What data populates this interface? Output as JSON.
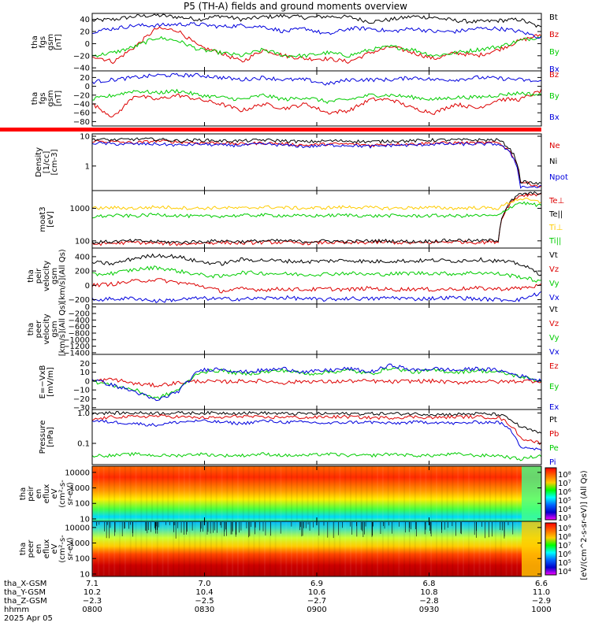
{
  "title": "P5 (TH-A) fields and ground moments overview",
  "date_label": "2025 Apr 05",
  "chart_data": [
    {
      "type": "line",
      "id": "fgs",
      "ylabel": [
        "tha",
        "fgs",
        "gsm",
        "[nT]"
      ],
      "ylim": [
        -45,
        50
      ],
      "yticks": [
        40,
        20,
        0,
        -20,
        -40
      ],
      "ytick_labels": [
        "40",
        "20",
        "0",
        "−20",
        "−40"
      ],
      "series": [
        {
          "name": "Bt",
          "color": "#000000",
          "values": [
            38,
            40,
            45,
            47,
            44,
            40,
            46,
            40,
            44,
            46,
            43,
            45,
            44,
            36,
            40,
            45,
            43,
            38,
            36,
            38,
            40,
            26
          ]
        },
        {
          "name": "Bz",
          "color": "#dd0000",
          "values": [
            -20,
            -30,
            -5,
            25,
            22,
            -5,
            -15,
            -30,
            -10,
            -20,
            -25,
            -25,
            -30,
            -15,
            -5,
            -15,
            -25,
            -15,
            -20,
            -10,
            5,
            15
          ]
        },
        {
          "name": "By",
          "color": "#00cc00",
          "values": [
            -20,
            -15,
            -5,
            10,
            5,
            -10,
            -15,
            -20,
            -10,
            -20,
            -20,
            -15,
            -20,
            -10,
            -5,
            -10,
            -20,
            -15,
            -10,
            -5,
            5,
            12
          ]
        },
        {
          "name": "Bx",
          "color": "#0000dd",
          "values": [
            20,
            25,
            30,
            30,
            32,
            32,
            28,
            30,
            28,
            20,
            25,
            15,
            25,
            25,
            20,
            25,
            20,
            20,
            25,
            25,
            20,
            10
          ]
        }
      ]
    },
    {
      "type": "line",
      "id": "fgs-2",
      "ylabel": [
        "tha",
        "fgs",
        "gsm",
        "[nT]"
      ],
      "ylim": [
        -90,
        35
      ],
      "yticks": [
        20,
        0,
        -20,
        -40,
        -60,
        -80
      ],
      "ytick_labels": [
        "20",
        "0",
        "−20",
        "−40",
        "−60",
        "−80"
      ],
      "series": [
        {
          "name": "Bz",
          "color": "#dd0000",
          "values": [
            -40,
            -70,
            -20,
            -30,
            -20,
            -30,
            -40,
            -55,
            -40,
            -50,
            -40,
            -60,
            -55,
            -30,
            -30,
            -50,
            -60,
            -40,
            -50,
            -30,
            -30,
            -10
          ]
        },
        {
          "name": "By",
          "color": "#00cc00",
          "values": [
            -30,
            -20,
            -10,
            -15,
            -10,
            -20,
            -25,
            -30,
            -20,
            -30,
            -25,
            -35,
            -30,
            -20,
            -20,
            -25,
            -30,
            -25,
            -25,
            -20,
            -15,
            -20
          ]
        },
        {
          "name": "Bx",
          "color": "#0000dd",
          "values": [
            10,
            15,
            20,
            25,
            25,
            25,
            20,
            15,
            20,
            15,
            15,
            5,
            15,
            15,
            15,
            20,
            15,
            15,
            20,
            18,
            15,
            10
          ]
        }
      ]
    },
    {
      "type": "line",
      "id": "density",
      "yscale": "log",
      "ylabel": [
        "Density",
        "[1/cc]",
        "[cm-3]"
      ],
      "ylim": [
        0.15,
        12
      ],
      "yticks": [
        10,
        1
      ],
      "ytick_labels": [
        "10",
        "1"
      ],
      "series": [
        {
          "name": "Ne",
          "color": "#dd0000",
          "values": [
            7,
            6.5,
            6,
            7,
            6.5,
            6,
            6,
            5.5,
            6,
            5.5,
            5,
            5.5,
            5.5,
            5,
            5.5,
            5.5,
            6,
            6,
            6,
            6,
            0.3,
            0.2
          ]
        },
        {
          "name": "Ni",
          "color": "#000000",
          "values": [
            8,
            7.5,
            8,
            8,
            7,
            7.5,
            7,
            7,
            7.5,
            7,
            6.5,
            7,
            7,
            6.5,
            7,
            7,
            7.5,
            7.5,
            7.5,
            7.5,
            0.3,
            0.25
          ]
        },
        {
          "name": "Npot",
          "color": "#0000dd",
          "values": [
            6,
            5.5,
            5.5,
            5.5,
            5,
            5.5,
            5,
            5,
            5.5,
            5,
            4.5,
            5,
            5,
            4.5,
            5,
            5,
            5.5,
            5.5,
            5.5,
            5.5,
            0.2,
            0.2
          ]
        }
      ]
    },
    {
      "type": "line",
      "id": "temperature",
      "yscale": "log",
      "ylabel": [
        "moat3",
        "[eV]"
      ],
      "ylim": [
        60,
        3500
      ],
      "yticks": [
        1000,
        100
      ],
      "ytick_labels": [
        "1000",
        "100"
      ],
      "series": [
        {
          "name": "Te⊥",
          "color": "#dd0000",
          "values": [
            80,
            85,
            90,
            85,
            80,
            85,
            90,
            85,
            90,
            90,
            85,
            90,
            85,
            90,
            90,
            85,
            90,
            95,
            90,
            95,
            2500,
            2800
          ]
        },
        {
          "name": "Te||",
          "color": "#000000",
          "values": [
            90,
            95,
            100,
            95,
            90,
            95,
            100,
            95,
            100,
            100,
            95,
            100,
            95,
            100,
            100,
            95,
            100,
            105,
            100,
            105,
            2700,
            3000
          ]
        },
        {
          "name": "Ti⊥",
          "color": "#ffcc00",
          "values": [
            1000,
            1050,
            1000,
            1100,
            1050,
            1000,
            1050,
            1000,
            1100,
            1050,
            1000,
            1050,
            1100,
            1050,
            1000,
            1050,
            1050,
            1000,
            1050,
            1000,
            2000,
            1500
          ]
        },
        {
          "name": "Ti||",
          "color": "#00cc00",
          "values": [
            550,
            600,
            580,
            650,
            600,
            560,
            580,
            600,
            620,
            600,
            580,
            600,
            620,
            580,
            600,
            580,
            600,
            580,
            600,
            580,
            1500,
            1200
          ]
        }
      ]
    },
    {
      "type": "line",
      "id": "peir-velocity",
      "ylabel": [
        "tha",
        "peir",
        "velocity",
        "gsm",
        "[km/s](All Qs)"
      ],
      "ylim": [
        -260,
        520
      ],
      "yticks": [
        400,
        200,
        0,
        -200
      ],
      "ytick_labels": [
        "400",
        "200",
        "0",
        "−200"
      ],
      "series": [
        {
          "name": "Vt",
          "color": "#000000",
          "values": [
            320,
            300,
            380,
            420,
            400,
            330,
            300,
            360,
            350,
            340,
            330,
            340,
            350,
            330,
            340,
            340,
            350,
            340,
            360,
            340,
            300,
            150
          ]
        },
        {
          "name": "Vz",
          "color": "#dd0000",
          "values": [
            0,
            20,
            60,
            80,
            40,
            0,
            -80,
            -50,
            -60,
            -50,
            -60,
            -50,
            -60,
            -40,
            -60,
            -50,
            -60,
            -50,
            -40,
            -50,
            -40,
            0
          ]
        },
        {
          "name": "Vy",
          "color": "#00cc00",
          "values": [
            150,
            170,
            220,
            250,
            200,
            150,
            120,
            180,
            170,
            160,
            150,
            160,
            170,
            150,
            160,
            170,
            170,
            160,
            180,
            160,
            120,
            50
          ]
        },
        {
          "name": "Vx",
          "color": "#0000dd",
          "values": [
            -200,
            -190,
            -180,
            -220,
            -200,
            -180,
            -190,
            -190,
            -180,
            -170,
            -190,
            -200,
            -180,
            -190,
            -170,
            -190,
            -180,
            -170,
            -190,
            -200,
            -200,
            -100
          ]
        }
      ]
    },
    {
      "type": "line",
      "id": "peer-velocity",
      "ylabel": [
        "tha",
        "peer",
        "velocity",
        "gsm",
        "[km/s](All Qs)"
      ],
      "ylim": [
        -1450,
        90
      ],
      "yticks": [
        0,
        -200,
        -400,
        -600,
        -800,
        -1000,
        -1200,
        -1400
      ],
      "ytick_labels": [
        "0",
        "−200",
        "−400",
        "−600",
        "−800",
        "−1000",
        "−1200",
        "−1400"
      ],
      "series": [
        {
          "name": "Vt",
          "color": "#000000",
          "values": []
        },
        {
          "name": "Vz",
          "color": "#dd0000",
          "values": []
        },
        {
          "name": "Vy",
          "color": "#00cc00",
          "values": []
        },
        {
          "name": "Vx",
          "color": "#0000dd",
          "values": []
        }
      ]
    },
    {
      "type": "line",
      "id": "efield",
      "ylabel": [
        "E=−VxB",
        "[mV/m]"
      ],
      "ylim": [
        -32,
        30
      ],
      "yticks": [
        20,
        10,
        0,
        -10,
        -20,
        -30
      ],
      "ytick_labels": [
        "20",
        "10",
        "0",
        "−10",
        "−20",
        "−30"
      ],
      "series": [
        {
          "name": "Ez",
          "color": "#dd0000",
          "values": [
            0,
            2,
            -3,
            -5,
            -2,
            0,
            -1,
            0,
            0,
            -2,
            0,
            -1,
            0,
            0,
            -1,
            0,
            0,
            -2,
            0,
            -1,
            0,
            0
          ]
        },
        {
          "name": "Ey",
          "color": "#00cc00",
          "values": [
            0,
            -5,
            -10,
            -20,
            -10,
            10,
            12,
            8,
            10,
            12,
            8,
            10,
            12,
            8,
            15,
            10,
            12,
            10,
            12,
            10,
            5,
            0
          ]
        },
        {
          "name": "Ex",
          "color": "#0000dd",
          "values": [
            2,
            -5,
            -12,
            -22,
            -12,
            12,
            14,
            10,
            12,
            14,
            10,
            12,
            14,
            10,
            18,
            12,
            14,
            12,
            14,
            12,
            6,
            0
          ]
        }
      ]
    },
    {
      "type": "line",
      "id": "pressure",
      "yscale": "log",
      "ylabel": [
        "Pressure",
        "[nPa]"
      ],
      "ylim": [
        0.02,
        1.3
      ],
      "yticks": [
        1.0,
        0.1
      ],
      "ytick_labels": [
        "1.0",
        "0.1"
      ],
      "series": [
        {
          "name": "Pt",
          "color": "#000000",
          "values": [
            1.0,
            1.0,
            1.0,
            1.0,
            1.0,
            1.0,
            1.0,
            1.0,
            1.0,
            0.95,
            0.95,
            0.95,
            0.95,
            0.95,
            0.95,
            0.95,
            0.9,
            0.9,
            0.95,
            0.9,
            0.35,
            0.2
          ]
        },
        {
          "name": "Pb",
          "color": "#dd0000",
          "values": [
            0.6,
            0.75,
            0.75,
            0.8,
            0.75,
            0.7,
            0.7,
            0.8,
            0.7,
            0.75,
            0.7,
            0.75,
            0.75,
            0.7,
            0.7,
            0.75,
            0.7,
            0.75,
            0.75,
            0.7,
            0.15,
            0.1
          ]
        },
        {
          "name": "Pe",
          "color": "#00cc00",
          "values": [
            0.04,
            0.04,
            0.045,
            0.04,
            0.04,
            0.045,
            0.04,
            0.04,
            0.045,
            0.04,
            0.04,
            0.045,
            0.04,
            0.04,
            0.045,
            0.04,
            0.04,
            0.045,
            0.04,
            0.04,
            0.03,
            0.04
          ]
        },
        {
          "name": "Pi",
          "color": "#0000dd",
          "values": [
            0.55,
            0.5,
            0.45,
            0.4,
            0.5,
            0.55,
            0.5,
            0.45,
            0.55,
            0.5,
            0.5,
            0.45,
            0.5,
            0.5,
            0.45,
            0.5,
            0.5,
            0.45,
            0.5,
            0.5,
            0.08,
            0.06
          ]
        }
      ]
    },
    {
      "type": "heatmap",
      "id": "peir-spec",
      "yscale": "log",
      "ylabel": [
        "tha",
        "peir",
        "en",
        "eflux",
        "eV",
        "(cm²-s-",
        "sr-eV)"
      ],
      "ylim": [
        7,
        25000
      ],
      "yticks": [
        10000,
        1000,
        100,
        10
      ],
      "ytick_labels": [
        "10000",
        "1000",
        "100",
        "10"
      ],
      "description_levels": [
        "low flux below ~30 eV",
        "peak near 1-8 keV"
      ]
    },
    {
      "type": "heatmap",
      "id": "peer-spec",
      "yscale": "log",
      "ylabel": [
        "tha",
        "peer",
        "en",
        "eflux",
        "eV",
        "(cm²-s-",
        "sr-eV)"
      ],
      "ylim": [
        7,
        25000
      ],
      "yticks": [
        10000,
        1000,
        100,
        10
      ],
      "ytick_labels": [
        "10000",
        "1000",
        "100",
        "10"
      ],
      "description_levels": [
        "peak below ~300 eV",
        "low flux above ~5 keV"
      ]
    }
  ],
  "colorbar": {
    "label": "[eV/(cm^2-s-sr-eV)] (All Qs)",
    "upper_ticks": [
      "10⁸",
      "10⁷",
      "10⁶",
      "10⁵",
      "10⁴",
      "10³"
    ],
    "lower_ticks": [
      "10⁹",
      "10⁸",
      "10⁷",
      "10⁶",
      "10⁵",
      "10⁴"
    ],
    "colors": [
      "#ff00ff",
      "#0000ff",
      "#00ffff",
      "#00ff00",
      "#ffff00",
      "#ff8800",
      "#ff0000",
      "#880000"
    ]
  },
  "x_axis": {
    "rows": [
      {
        "label": "tha_X-GSM",
        "values": [
          "7.1",
          "7.0",
          "6.9",
          "6.8",
          "6.6"
        ]
      },
      {
        "label": "tha_Y-GSM",
        "values": [
          "10.2",
          "10.4",
          "10.6",
          "10.8",
          "11.0"
        ]
      },
      {
        "label": "tha_Z-GSM",
        "values": [
          "−2.3",
          "−2.5",
          "−2.7",
          "−2.8",
          "−2.9"
        ]
      },
      {
        "label": "hhmm",
        "values": [
          "0800",
          "0830",
          "0900",
          "0930",
          "1000"
        ]
      }
    ]
  }
}
